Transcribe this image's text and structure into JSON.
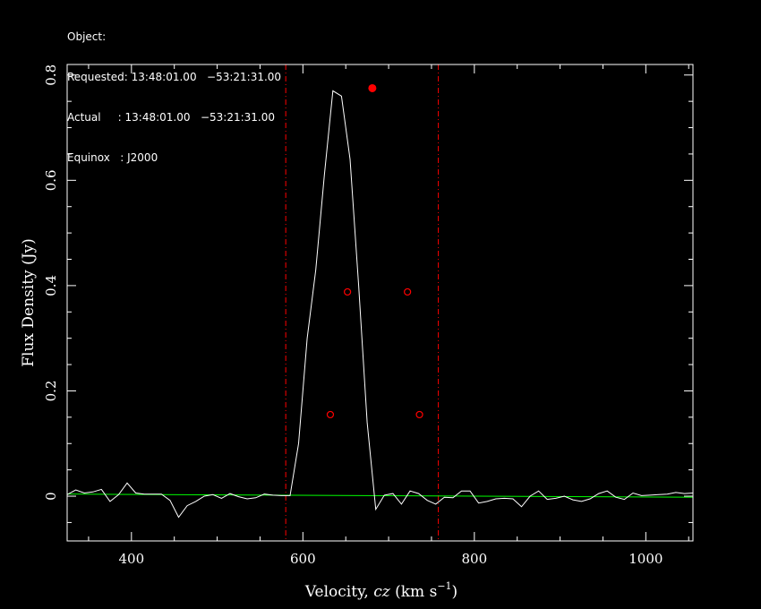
{
  "header": {
    "object_line": "Object:",
    "requested_line": "Requested: 13:48:01.00   −53:21:31.00",
    "actual_line": "Actual     : 13:48:01.00   −53:21:31.00",
    "equinox_line": "Equinox   : J2000"
  },
  "chart_data": {
    "type": "line",
    "xlabel_main": "Velocity, ",
    "xlabel_italic": "cz",
    "xlabel_units": " (km s",
    "xlabel_sup": "−1",
    "xlabel_close": ")",
    "ylabel": "Flux Density (Jy)",
    "xlim": [
      325,
      1055
    ],
    "ylim": [
      -0.085,
      0.82
    ],
    "x_ticks": [
      {
        "value": 400,
        "label": "400"
      },
      {
        "value": 600,
        "label": "600"
      },
      {
        "value": 800,
        "label": "800"
      },
      {
        "value": 1000,
        "label": "1000"
      }
    ],
    "y_ticks": [
      {
        "value": 0,
        "label": "0"
      },
      {
        "value": 0.2,
        "label": "0.2"
      },
      {
        "value": 0.4,
        "label": "0.4"
      },
      {
        "value": 0.6,
        "label": "0.6"
      },
      {
        "value": 0.8,
        "label": "0.8"
      }
    ],
    "spectrum": {
      "color": "#ffffff",
      "x": [
        325,
        335,
        345,
        355,
        365,
        375,
        385,
        395,
        405,
        415,
        425,
        435,
        445,
        455,
        465,
        475,
        485,
        495,
        505,
        515,
        525,
        535,
        545,
        555,
        565,
        575,
        585,
        595,
        605,
        615,
        625,
        635,
        645,
        655,
        665,
        675,
        685,
        695,
        705,
        715,
        725,
        735,
        745,
        755,
        765,
        775,
        785,
        795,
        805,
        815,
        825,
        835,
        845,
        855,
        865,
        875,
        885,
        895,
        905,
        915,
        925,
        935,
        945,
        955,
        965,
        975,
        985,
        995,
        1005,
        1015,
        1025,
        1035,
        1045,
        1055
      ],
      "y": [
        0.003,
        0.012,
        0.006,
        0.008,
        0.013,
        -0.01,
        0.003,
        0.025,
        0.006,
        0.004,
        0.004,
        0.004,
        -0.008,
        -0.04,
        -0.018,
        -0.01,
        0.0,
        0.003,
        -0.004,
        0.005,
        -0.001,
        -0.005,
        -0.003,
        0.004,
        0.002,
        0.001,
        0.001,
        0.1,
        0.3,
        0.43,
        0.61,
        0.77,
        0.76,
        0.64,
        0.4,
        0.14,
        -0.025,
        0.002,
        0.005,
        -0.015,
        0.01,
        0.005,
        -0.008,
        -0.015,
        -0.002,
        -0.003,
        0.01,
        0.01,
        -0.013,
        -0.01,
        -0.005,
        -0.004,
        -0.005,
        -0.02,
        0.0,
        0.01,
        -0.006,
        -0.004,
        0.0,
        -0.007,
        -0.01,
        -0.005,
        0.005,
        0.01,
        -0.002,
        -0.006,
        0.006,
        0.001,
        0.002,
        0.003,
        0.004,
        0.007,
        0.005,
        0.006
      ]
    },
    "baseline": {
      "color": "#00ff00",
      "x": [
        325,
        1055
      ],
      "y": [
        0.004,
        -0.002
      ]
    },
    "markers_open": {
      "color": "#ff0000",
      "points": [
        {
          "x": 632,
          "y": 0.155
        },
        {
          "x": 652,
          "y": 0.388
        },
        {
          "x": 722,
          "y": 0.388
        },
        {
          "x": 736,
          "y": 0.155
        }
      ]
    },
    "marker_peak": {
      "color": "#ff0000",
      "x": 681,
      "y": 0.775
    },
    "vlines": {
      "color": "#ff0000",
      "x": [
        580,
        758
      ]
    }
  }
}
